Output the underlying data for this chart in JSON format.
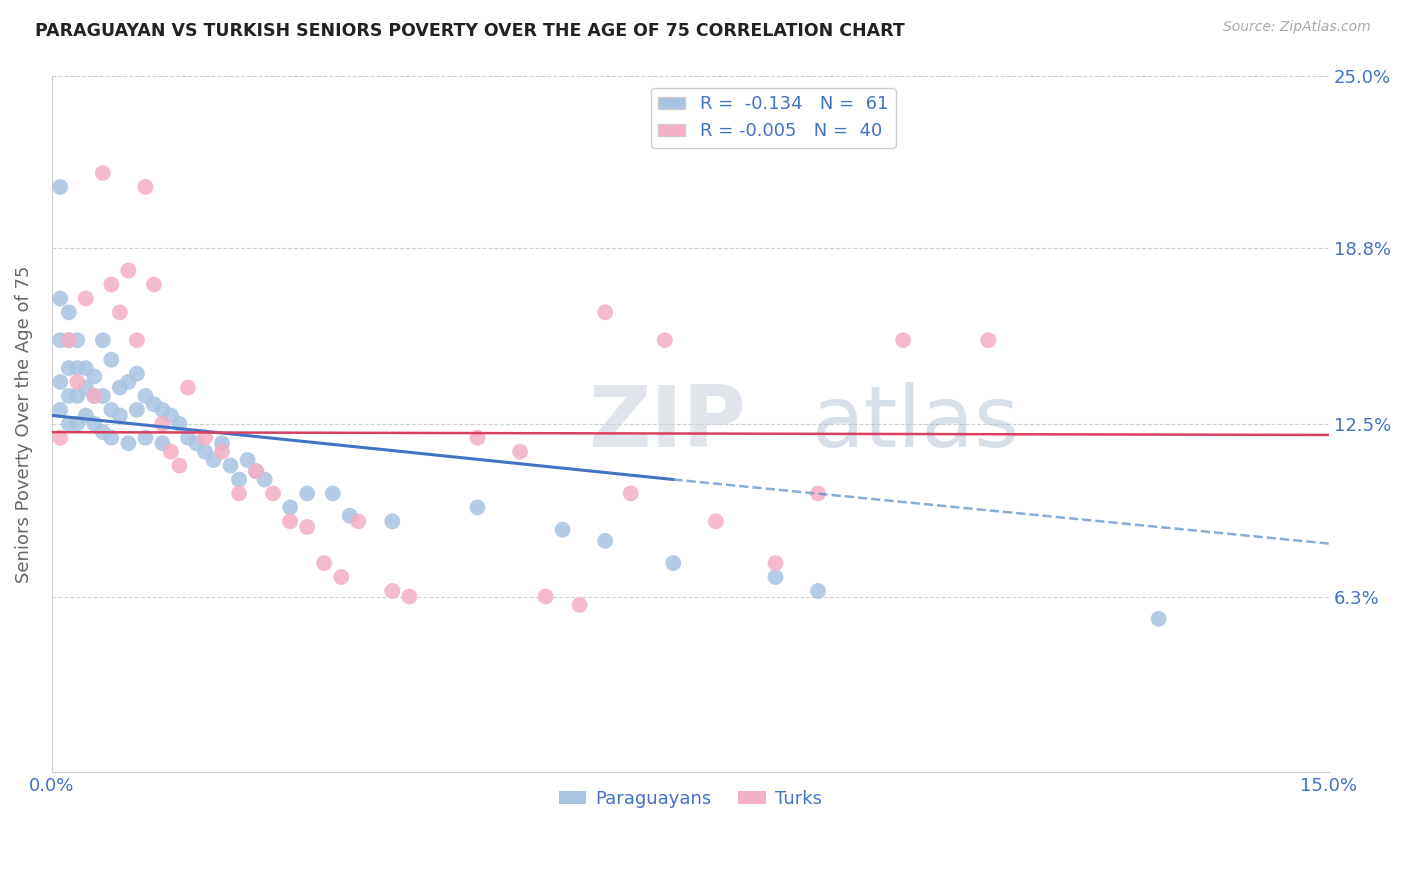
{
  "title": "PARAGUAYAN VS TURKISH SENIORS POVERTY OVER THE AGE OF 75 CORRELATION CHART",
  "source": "Source: ZipAtlas.com",
  "ylabel": "Seniors Poverty Over the Age of 75",
  "xlim": [
    0.0,
    0.15
  ],
  "ylim": [
    0.0,
    0.25
  ],
  "R_paraguayan": -0.134,
  "N_paraguayan": 61,
  "R_turkish": -0.005,
  "N_turkish": 40,
  "paraguayan_color": "#a8c4e0",
  "turkish_color": "#f4b0c4",
  "line_paraguayan_solid_color": "#4472c4",
  "line_turkish_solid_color": "#d94060",
  "line_dash_color": "#6090c8",
  "watermark_zip": "ZIP",
  "watermark_atlas": "atlas",
  "paraguayan_x": [
    0.001,
    0.001,
    0.001,
    0.001,
    0.001,
    0.002,
    0.002,
    0.002,
    0.002,
    0.002,
    0.003,
    0.003,
    0.003,
    0.003,
    0.004,
    0.004,
    0.004,
    0.005,
    0.005,
    0.005,
    0.006,
    0.006,
    0.006,
    0.007,
    0.007,
    0.007,
    0.008,
    0.008,
    0.009,
    0.009,
    0.01,
    0.01,
    0.011,
    0.011,
    0.012,
    0.013,
    0.013,
    0.014,
    0.015,
    0.016,
    0.017,
    0.018,
    0.019,
    0.02,
    0.021,
    0.022,
    0.023,
    0.024,
    0.025,
    0.028,
    0.03,
    0.033,
    0.035,
    0.04,
    0.05,
    0.06,
    0.065,
    0.073,
    0.085,
    0.09,
    0.13
  ],
  "paraguayan_y": [
    0.21,
    0.17,
    0.155,
    0.14,
    0.13,
    0.165,
    0.155,
    0.145,
    0.135,
    0.125,
    0.155,
    0.145,
    0.135,
    0.125,
    0.145,
    0.138,
    0.128,
    0.142,
    0.135,
    0.125,
    0.155,
    0.135,
    0.122,
    0.148,
    0.13,
    0.12,
    0.138,
    0.128,
    0.14,
    0.118,
    0.143,
    0.13,
    0.135,
    0.12,
    0.132,
    0.13,
    0.118,
    0.128,
    0.125,
    0.12,
    0.118,
    0.115,
    0.112,
    0.118,
    0.11,
    0.105,
    0.112,
    0.108,
    0.105,
    0.095,
    0.1,
    0.1,
    0.092,
    0.09,
    0.095,
    0.087,
    0.083,
    0.075,
    0.07,
    0.065,
    0.055
  ],
  "turkish_x": [
    0.001,
    0.002,
    0.003,
    0.004,
    0.005,
    0.006,
    0.007,
    0.008,
    0.009,
    0.01,
    0.011,
    0.012,
    0.013,
    0.014,
    0.015,
    0.016,
    0.018,
    0.02,
    0.022,
    0.024,
    0.026,
    0.028,
    0.03,
    0.032,
    0.034,
    0.036,
    0.04,
    0.042,
    0.05,
    0.055,
    0.058,
    0.062,
    0.065,
    0.068,
    0.072,
    0.078,
    0.085,
    0.09,
    0.1,
    0.11
  ],
  "turkish_y": [
    0.12,
    0.155,
    0.14,
    0.17,
    0.135,
    0.215,
    0.175,
    0.165,
    0.18,
    0.155,
    0.21,
    0.175,
    0.125,
    0.115,
    0.11,
    0.138,
    0.12,
    0.115,
    0.1,
    0.108,
    0.1,
    0.09,
    0.088,
    0.075,
    0.07,
    0.09,
    0.065,
    0.063,
    0.12,
    0.115,
    0.063,
    0.06,
    0.165,
    0.1,
    0.155,
    0.09,
    0.075,
    0.1,
    0.155,
    0.155
  ],
  "line_blue_x0": 0.0,
  "line_blue_x1": 0.15,
  "line_blue_y0": 0.128,
  "line_blue_y1": 0.082,
  "line_pink_x0": 0.0,
  "line_pink_x1": 0.15,
  "line_pink_y0": 0.122,
  "line_pink_y1": 0.121,
  "line_solid_end_x": 0.073,
  "line_solid_end_y": 0.105
}
